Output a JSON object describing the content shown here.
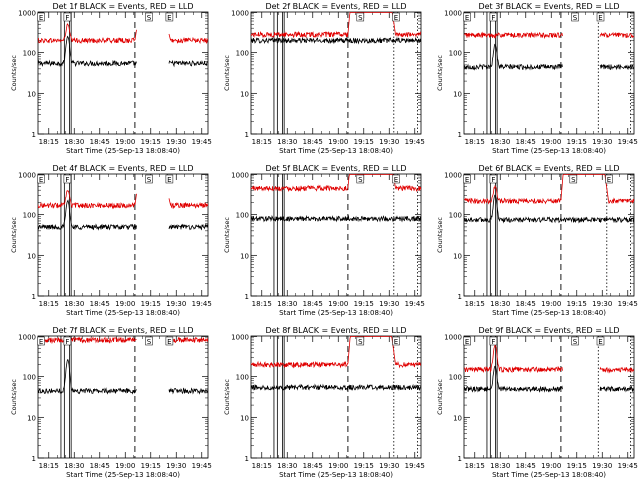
{
  "figure": {
    "background": "#ffffff",
    "colors": {
      "events": "#000000",
      "lld": "#e00000",
      "axes": "#000000"
    }
  },
  "chart_data": [
    {
      "type": "line",
      "title": "Det 1f BLACK = Events, RED = LLD",
      "xlabel": "Start Time (25-Sep-13 18:08:40)",
      "ylabel": "Counts/sec",
      "y_scale": "log",
      "ylim": [
        1,
        1000
      ],
      "y_ticks": [
        "1",
        "10",
        "100",
        "1000"
      ],
      "x_ticks": [
        "18:15",
        "18:30",
        "18:45",
        "19:00",
        "19:15",
        "19:30",
        "19:45"
      ],
      "xlim_minutes": [
        0,
        100
      ],
      "markers": [
        {
          "label": "E",
          "t": 1.5
        },
        {
          "label": "F",
          "t": 17
        },
        {
          "label": "S",
          "t": 65
        },
        {
          "label": "E",
          "t": 77
        }
      ],
      "solid_lines": [
        13.5,
        15.5,
        18.5,
        19.5
      ],
      "dashed_lines": [
        57
      ],
      "dotted_lines": [],
      "gaps": [
        [
          58,
          77
        ]
      ],
      "series": [
        {
          "name": "BLACK = Events",
          "color": "#000000",
          "base": 55,
          "spikes": [
            {
              "t": 17.5,
              "peak": 250,
              "w": 1.2
            }
          ],
          "flares": []
        },
        {
          "name": "RED = LLD",
          "color": "#e00000",
          "base": 200,
          "spikes": [
            {
              "t": 17.5,
              "peak": 500,
              "w": 1.2
            }
          ],
          "flares": [
            {
              "start": 57,
              "end": 78,
              "peak": 1500
            }
          ]
        }
      ]
    },
    {
      "type": "line",
      "title": "Det 2f BLACK = Events, RED = LLD",
      "xlabel": "Start Time (25-Sep-13 18:08:40)",
      "ylabel": "Counts/sec",
      "y_scale": "log",
      "ylim": [
        1,
        1000
      ],
      "y_ticks": [
        "1",
        "10",
        "100",
        "1000"
      ],
      "x_ticks": [
        "18:15",
        "18:30",
        "18:45",
        "19:00",
        "19:15",
        "19:30",
        "19:45"
      ],
      "xlim_minutes": [
        0,
        100
      ],
      "markers": [
        {
          "label": "S",
          "t": 64
        },
        {
          "label": "E",
          "t": 85
        }
      ],
      "solid_lines": [
        13.5,
        15.5,
        18.5,
        19.5
      ],
      "dashed_lines": [
        57
      ],
      "dotted_lines": [
        84,
        98
      ],
      "gaps": [],
      "series": [
        {
          "name": "BLACK = Events",
          "color": "#000000",
          "base": 200,
          "spikes": [],
          "flares": []
        },
        {
          "name": "RED = LLD",
          "color": "#e00000",
          "base": 280,
          "spikes": [],
          "flares": [
            {
              "start": 57,
              "end": 85,
              "peak": 30000
            }
          ]
        }
      ]
    },
    {
      "type": "line",
      "title": "Det 3f BLACK = Events, RED = LLD",
      "xlabel": "Start Time (25-Sep-13 18:08:40)",
      "ylabel": "Counts/sec",
      "y_scale": "log",
      "ylim": [
        1,
        1000
      ],
      "y_ticks": [
        "1",
        "10",
        "100",
        "1000"
      ],
      "x_ticks": [
        "18:15",
        "18:30",
        "18:45",
        "19:00",
        "19:15",
        "19:30",
        "19:45"
      ],
      "xlim_minutes": [
        0,
        100
      ],
      "markers": [
        {
          "label": "E",
          "t": 1.5
        },
        {
          "label": "F",
          "t": 17
        },
        {
          "label": "S",
          "t": 65
        },
        {
          "label": "E",
          "t": 80
        }
      ],
      "solid_lines": [
        13.5,
        15.5,
        18.5,
        19.5
      ],
      "dashed_lines": [
        57
      ],
      "dotted_lines": [
        79,
        98
      ],
      "gaps": [
        [
          58,
          80
        ]
      ],
      "series": [
        {
          "name": "BLACK = Events",
          "color": "#000000",
          "base": 45,
          "spikes": [
            {
              "t": 18.3,
              "peak": 160,
              "w": 1.2
            }
          ],
          "flares": []
        },
        {
          "name": "RED = LLD",
          "color": "#e00000",
          "base": 270,
          "spikes": [],
          "flares": []
        }
      ]
    },
    {
      "type": "line",
      "title": "Det 4f BLACK = Events, RED = LLD",
      "xlabel": "Start Time (25-Sep-13 18:08:40)",
      "ylabel": "Counts/sec",
      "y_scale": "log",
      "ylim": [
        1,
        1000
      ],
      "y_ticks": [
        "1",
        "10",
        "100",
        "1000"
      ],
      "x_ticks": [
        "18:15",
        "18:30",
        "18:45",
        "19:00",
        "19:15",
        "19:30",
        "19:45"
      ],
      "xlim_minutes": [
        0,
        100
      ],
      "markers": [
        {
          "label": "E",
          "t": 1.5
        },
        {
          "label": "F",
          "t": 17
        },
        {
          "label": "S",
          "t": 65
        },
        {
          "label": "E",
          "t": 77
        }
      ],
      "solid_lines": [
        13.5,
        15.5,
        18.5,
        19.5
      ],
      "dashed_lines": [
        57
      ],
      "dotted_lines": [],
      "gaps": [
        [
          58,
          77
        ]
      ],
      "series": [
        {
          "name": "BLACK = Events",
          "color": "#000000",
          "base": 50,
          "spikes": [
            {
              "t": 17.5,
              "peak": 220,
              "w": 1.2
            }
          ],
          "flares": []
        },
        {
          "name": "RED = LLD",
          "color": "#e00000",
          "base": 170,
          "spikes": [
            {
              "t": 17.5,
              "peak": 400,
              "w": 1.2
            }
          ],
          "flares": [
            {
              "start": 57,
              "end": 78,
              "peak": 1500
            }
          ]
        }
      ]
    },
    {
      "type": "line",
      "title": "Det 5f BLACK = Events, RED = LLD",
      "xlabel": "Start Time (25-Sep-13 18:08:40)",
      "ylabel": "Counts/sec",
      "y_scale": "log",
      "ylim": [
        1,
        1000
      ],
      "y_ticks": [
        "1",
        "10",
        "100",
        "1000"
      ],
      "x_ticks": [
        "18:15",
        "18:30",
        "18:45",
        "19:00",
        "19:15",
        "19:30",
        "19:45"
      ],
      "xlim_minutes": [
        0,
        100
      ],
      "markers": [
        {
          "label": "S",
          "t": 64
        },
        {
          "label": "E",
          "t": 85
        }
      ],
      "solid_lines": [
        13.5,
        15.5,
        18.5,
        19.5
      ],
      "dashed_lines": [
        57
      ],
      "dotted_lines": [
        84,
        98
      ],
      "gaps": [],
      "series": [
        {
          "name": "BLACK = Events",
          "color": "#000000",
          "base": 80,
          "spikes": [],
          "flares": []
        },
        {
          "name": "RED = LLD",
          "color": "#e00000",
          "base": 450,
          "spikes": [],
          "flares": [
            {
              "start": 57,
              "end": 85,
              "peak": 30000
            }
          ]
        }
      ]
    },
    {
      "type": "line",
      "title": "Det 6f BLACK = Events, RED = LLD",
      "xlabel": "Start Time (25-Sep-13 18:08:40)",
      "ylabel": "Counts/sec",
      "y_scale": "log",
      "ylim": [
        1,
        1000
      ],
      "y_ticks": [
        "1",
        "10",
        "100",
        "1000"
      ],
      "x_ticks": [
        "18:15",
        "18:30",
        "18:45",
        "19:00",
        "19:15",
        "19:30",
        "19:45"
      ],
      "xlim_minutes": [
        0,
        100
      ],
      "markers": [
        {
          "label": "E",
          "t": 1.5
        },
        {
          "label": "F",
          "t": 17
        },
        {
          "label": "S",
          "t": 64
        },
        {
          "label": "E",
          "t": 85
        }
      ],
      "solid_lines": [
        13.5,
        15.5,
        18.5,
        19.5
      ],
      "dashed_lines": [
        57
      ],
      "dotted_lines": [
        84,
        98
      ],
      "gaps": [],
      "series": [
        {
          "name": "BLACK = Events",
          "color": "#000000",
          "base": 75,
          "spikes": [
            {
              "t": 18.3,
              "peak": 300,
              "w": 1.2
            }
          ],
          "flares": []
        },
        {
          "name": "RED = LLD",
          "color": "#e00000",
          "base": 220,
          "spikes": [
            {
              "t": 18.3,
              "peak": 500,
              "w": 1.2
            }
          ],
          "flares": [
            {
              "start": 57,
              "end": 85,
              "peak": 30000
            }
          ]
        }
      ]
    },
    {
      "type": "line",
      "title": "Det 7f BLACK = Events, RED = LLD",
      "xlabel": "Start Time (25-Sep-13 18:08:40)",
      "ylabel": "Counts/sec",
      "y_scale": "log",
      "ylim": [
        1,
        1000
      ],
      "y_ticks": [
        "1",
        "10",
        "100",
        "1000"
      ],
      "x_ticks": [
        "18:15",
        "18:30",
        "18:45",
        "19:00",
        "19:15",
        "19:30",
        "19:45"
      ],
      "xlim_minutes": [
        0,
        100
      ],
      "markers": [
        {
          "label": "E",
          "t": 1.5
        },
        {
          "label": "F",
          "t": 17
        },
        {
          "label": "S",
          "t": 65
        },
        {
          "label": "E",
          "t": 77
        }
      ],
      "solid_lines": [
        13.5,
        15.5,
        18.5,
        19.5
      ],
      "dashed_lines": [
        57
      ],
      "dotted_lines": [],
      "gaps": [
        [
          58,
          77
        ]
      ],
      "series": [
        {
          "name": "BLACK = Events",
          "color": "#000000",
          "base": 45,
          "spikes": [
            {
              "t": 17.5,
              "peak": 260,
              "w": 1.2
            }
          ],
          "flares": []
        },
        {
          "name": "RED = LLD",
          "color": "#e00000",
          "base": 800,
          "spikes": [],
          "flares": []
        }
      ]
    },
    {
      "type": "line",
      "title": "Det 8f BLACK = Events, RED = LLD",
      "xlabel": "Start Time (25-Sep-13 18:08:40)",
      "ylabel": "Counts/sec",
      "y_scale": "log",
      "ylim": [
        1,
        1000
      ],
      "y_ticks": [
        "1",
        "10",
        "100",
        "1000"
      ],
      "x_ticks": [
        "18:15",
        "18:30",
        "18:45",
        "19:00",
        "19:15",
        "19:30",
        "19:45"
      ],
      "xlim_minutes": [
        0,
        100
      ],
      "markers": [
        {
          "label": "S",
          "t": 64
        },
        {
          "label": "E",
          "t": 85
        }
      ],
      "solid_lines": [
        13.5,
        15.5,
        18.5,
        19.5
      ],
      "dashed_lines": [
        57
      ],
      "dotted_lines": [
        84,
        98
      ],
      "gaps": [],
      "series": [
        {
          "name": "BLACK = Events",
          "color": "#000000",
          "base": 55,
          "spikes": [],
          "flares": []
        },
        {
          "name": "RED = LLD",
          "color": "#e00000",
          "base": 200,
          "spikes": [],
          "flares": [
            {
              "start": 57,
              "end": 85,
              "peak": 30000
            }
          ]
        }
      ]
    },
    {
      "type": "line",
      "title": "Det 9f BLACK = Events, RED = LLD",
      "xlabel": "Start Time (25-Sep-13 18:08:40)",
      "ylabel": "Counts/sec",
      "y_scale": "log",
      "ylim": [
        1,
        1000
      ],
      "y_ticks": [
        "1",
        "10",
        "100",
        "1000"
      ],
      "x_ticks": [
        "18:15",
        "18:30",
        "18:45",
        "19:00",
        "19:15",
        "19:30",
        "19:45"
      ],
      "xlim_minutes": [
        0,
        100
      ],
      "markers": [
        {
          "label": "E",
          "t": 1.5
        },
        {
          "label": "F",
          "t": 17
        },
        {
          "label": "S",
          "t": 65
        },
        {
          "label": "E",
          "t": 80
        }
      ],
      "solid_lines": [
        13.5,
        15.5,
        18.5,
        19.5
      ],
      "dashed_lines": [
        57
      ],
      "dotted_lines": [
        79,
        98
      ],
      "gaps": [
        [
          58,
          80
        ]
      ],
      "series": [
        {
          "name": "BLACK = Events",
          "color": "#000000",
          "base": 50,
          "spikes": [
            {
              "t": 18.3,
              "peak": 180,
              "w": 1.2
            }
          ],
          "flares": []
        },
        {
          "name": "RED = LLD",
          "color": "#e00000",
          "base": 150,
          "spikes": [
            {
              "t": 18.3,
              "peak": 600,
              "w": 1.2
            }
          ],
          "flares": []
        }
      ]
    }
  ]
}
